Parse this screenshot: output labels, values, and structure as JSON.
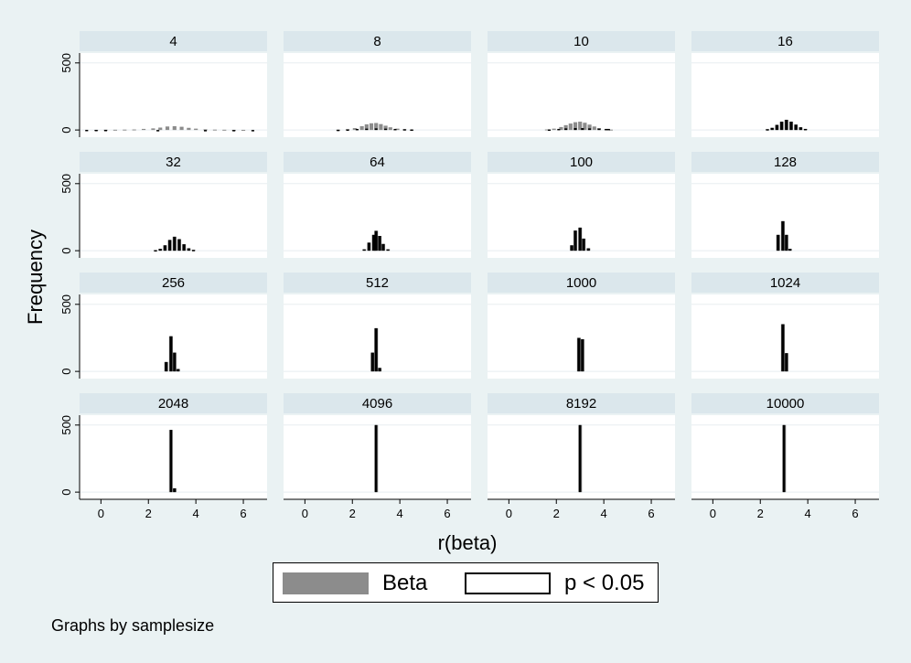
{
  "chart_data": {
    "type": "bar",
    "facet_variable": "samplesize",
    "panels": [
      {
        "label": "4",
        "beta_bins": [
          [
            -0.2,
            1
          ],
          [
            0.2,
            2
          ],
          [
            0.6,
            2
          ],
          [
            1.0,
            3
          ],
          [
            1.4,
            4
          ],
          [
            1.8,
            8
          ],
          [
            2.2,
            12
          ],
          [
            2.5,
            18
          ],
          [
            2.8,
            26
          ],
          [
            3.1,
            28
          ],
          [
            3.4,
            24
          ],
          [
            3.7,
            16
          ],
          [
            4.0,
            10
          ],
          [
            4.4,
            5
          ],
          [
            4.8,
            3
          ],
          [
            5.2,
            2
          ],
          [
            5.6,
            1
          ],
          [
            6.0,
            1
          ]
        ],
        "sig_bins": [
          [
            -0.6,
            1
          ],
          [
            -0.2,
            1
          ],
          [
            0.2,
            1
          ],
          [
            2.4,
            -8
          ],
          [
            4.4,
            -4
          ],
          [
            5.6,
            -4
          ],
          [
            6.4,
            -2
          ]
        ]
      },
      {
        "label": "8",
        "beta_bins": [
          [
            1.4,
            2
          ],
          [
            1.8,
            6
          ],
          [
            2.1,
            14
          ],
          [
            2.4,
            28
          ],
          [
            2.6,
            42
          ],
          [
            2.8,
            50
          ],
          [
            3.0,
            52
          ],
          [
            3.2,
            44
          ],
          [
            3.4,
            32
          ],
          [
            3.6,
            20
          ],
          [
            3.9,
            10
          ],
          [
            4.2,
            5
          ],
          [
            4.5,
            2
          ]
        ],
        "sig_bins": [
          [
            1.4,
            2
          ],
          [
            1.8,
            4
          ],
          [
            2.2,
            8
          ],
          [
            2.6,
            10
          ],
          [
            3.0,
            12
          ],
          [
            3.4,
            10
          ],
          [
            3.8,
            8
          ],
          [
            4.2,
            6
          ],
          [
            4.5,
            4
          ]
        ]
      },
      {
        "label": "10",
        "beta_bins": [
          [
            1.6,
            4
          ],
          [
            1.9,
            10
          ],
          [
            2.2,
            22
          ],
          [
            2.4,
            36
          ],
          [
            2.6,
            48
          ],
          [
            2.8,
            58
          ],
          [
            3.0,
            62
          ],
          [
            3.2,
            54
          ],
          [
            3.4,
            40
          ],
          [
            3.6,
            26
          ],
          [
            3.8,
            14
          ],
          [
            4.1,
            6
          ],
          [
            4.3,
            3
          ]
        ],
        "sig_bins": [
          [
            1.7,
            4
          ],
          [
            2.1,
            8
          ],
          [
            2.4,
            12
          ],
          [
            2.8,
            14
          ],
          [
            3.1,
            14
          ],
          [
            3.4,
            12
          ],
          [
            3.8,
            10
          ],
          [
            4.1,
            8
          ],
          [
            4.2,
            8
          ]
        ]
      },
      {
        "label": "16",
        "beta_bins": [
          [
            2.3,
            6
          ],
          [
            2.5,
            16
          ],
          [
            2.7,
            38
          ],
          [
            2.9,
            62
          ],
          [
            3.1,
            76
          ],
          [
            3.3,
            62
          ],
          [
            3.5,
            40
          ],
          [
            3.7,
            20
          ],
          [
            3.9,
            8
          ]
        ],
        "sig_bins": [
          [
            2.3,
            6
          ],
          [
            2.5,
            16
          ],
          [
            2.7,
            38
          ],
          [
            2.9,
            62
          ],
          [
            3.1,
            76
          ],
          [
            3.3,
            62
          ],
          [
            3.5,
            40
          ],
          [
            3.7,
            20
          ],
          [
            3.9,
            8
          ]
        ]
      },
      {
        "label": "32",
        "beta_bins": [
          [
            2.3,
            4
          ],
          [
            2.5,
            14
          ],
          [
            2.7,
            40
          ],
          [
            2.9,
            80
          ],
          [
            3.1,
            104
          ],
          [
            3.3,
            86
          ],
          [
            3.5,
            48
          ],
          [
            3.7,
            18
          ],
          [
            3.9,
            6
          ]
        ],
        "sig_bins": [
          [
            2.3,
            4
          ],
          [
            2.5,
            14
          ],
          [
            2.7,
            40
          ],
          [
            2.9,
            80
          ],
          [
            3.1,
            104
          ],
          [
            3.3,
            86
          ],
          [
            3.5,
            48
          ],
          [
            3.7,
            18
          ],
          [
            3.9,
            6
          ]
        ]
      },
      {
        "label": "64",
        "beta_bins": [
          [
            2.5,
            10
          ],
          [
            2.7,
            60
          ],
          [
            2.9,
            118
          ],
          [
            3.0,
            148
          ],
          [
            3.15,
            110
          ],
          [
            3.3,
            50
          ],
          [
            3.5,
            10
          ]
        ],
        "sig_bins": [
          [
            2.5,
            10
          ],
          [
            2.7,
            60
          ],
          [
            2.9,
            118
          ],
          [
            3.0,
            148
          ],
          [
            3.15,
            110
          ],
          [
            3.3,
            50
          ],
          [
            3.5,
            10
          ]
        ]
      },
      {
        "label": "100",
        "beta_bins": [
          [
            2.65,
            40
          ],
          [
            2.8,
            150
          ],
          [
            3.0,
            172
          ],
          [
            3.15,
            90
          ],
          [
            3.35,
            18
          ]
        ],
        "sig_bins": [
          [
            2.65,
            40
          ],
          [
            2.8,
            150
          ],
          [
            3.0,
            172
          ],
          [
            3.15,
            90
          ],
          [
            3.35,
            18
          ]
        ]
      },
      {
        "label": "128",
        "beta_bins": [
          [
            2.75,
            118
          ],
          [
            2.95,
            220
          ],
          [
            3.1,
            118
          ],
          [
            3.25,
            14
          ]
        ],
        "sig_bins": [
          [
            2.75,
            118
          ],
          [
            2.95,
            220
          ],
          [
            3.1,
            118
          ],
          [
            3.25,
            14
          ]
        ]
      },
      {
        "label": "256",
        "beta_bins": [
          [
            2.75,
            70
          ],
          [
            2.95,
            262
          ],
          [
            3.1,
            140
          ],
          [
            3.25,
            18
          ]
        ],
        "sig_bins": [
          [
            2.75,
            70
          ],
          [
            2.95,
            262
          ],
          [
            3.1,
            140
          ],
          [
            3.25,
            18
          ]
        ]
      },
      {
        "label": "512",
        "beta_bins": [
          [
            2.85,
            140
          ],
          [
            3.0,
            322
          ],
          [
            3.15,
            26
          ]
        ],
        "sig_bins": [
          [
            2.85,
            140
          ],
          [
            3.0,
            322
          ],
          [
            3.15,
            26
          ]
        ]
      },
      {
        "label": "1000",
        "beta_bins": [
          [
            2.95,
            250
          ],
          [
            3.1,
            240
          ]
        ],
        "sig_bins": [
          [
            2.95,
            250
          ],
          [
            3.1,
            240
          ]
        ]
      },
      {
        "label": "1024",
        "beta_bins": [
          [
            2.95,
            352
          ],
          [
            3.1,
            136
          ]
        ],
        "sig_bins": [
          [
            2.95,
            352
          ],
          [
            3.1,
            136
          ]
        ]
      },
      {
        "label": "2048",
        "beta_bins": [
          [
            2.95,
            464
          ],
          [
            3.1,
            28
          ]
        ],
        "sig_bins": [
          [
            2.95,
            464
          ],
          [
            3.1,
            28
          ]
        ]
      },
      {
        "label": "4096",
        "beta_bins": [
          [
            3.0,
            500
          ]
        ],
        "sig_bins": [
          [
            3.0,
            500
          ]
        ]
      },
      {
        "label": "8192",
        "beta_bins": [
          [
            3.0,
            500
          ]
        ],
        "sig_bins": [
          [
            3.0,
            500
          ]
        ]
      },
      {
        "label": "10000",
        "beta_bins": [
          [
            3.0,
            500
          ]
        ],
        "sig_bins": [
          [
            3.0,
            500
          ]
        ]
      }
    ],
    "series": [
      {
        "name": "Beta",
        "fill": "#8c8c8c"
      },
      {
        "name": "p < 0.05",
        "fill": "#000000"
      }
    ],
    "xlabel": "r(beta)",
    "ylabel": "Frequency",
    "x_ticks": [
      0,
      2,
      4,
      6
    ],
    "y_ticks": [
      0,
      500
    ],
    "xlim": [
      -0.9,
      7.0
    ],
    "ylim": [
      -40,
      560
    ],
    "grid": "horizontal",
    "legend": "bottom-center"
  },
  "legend": {
    "beta_label": "Beta",
    "sig_label": "p < 0.05"
  },
  "note": "Graphs by samplesize",
  "colors": {
    "background": "#eaf2f3",
    "strip": "#dbe7ec",
    "panel": "#ffffff",
    "grid": "#e8eef0",
    "beta": "#8c8c8c",
    "sig": "#000000"
  }
}
